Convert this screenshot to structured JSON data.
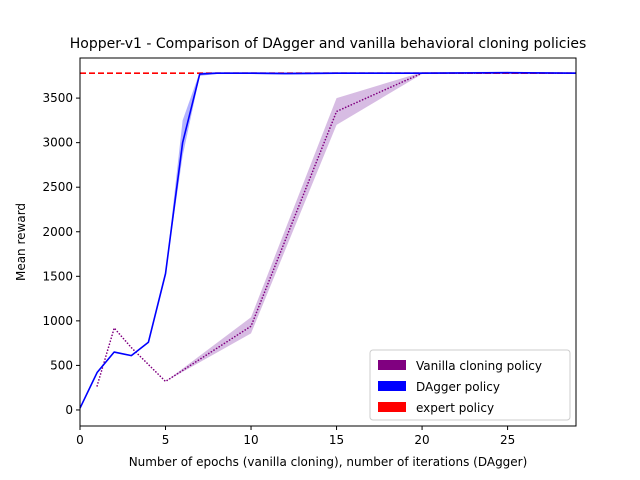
{
  "chart_data": {
    "type": "line",
    "title": "Hopper-v1 - Comparison of DAgger and vanilla behavioral cloning policies",
    "xlabel": "Number of epochs (vanilla cloning), number of iterations (DAgger)",
    "ylabel": "Mean reward",
    "xlim": [
      0,
      29
    ],
    "ylim": [
      -180,
      3950
    ],
    "xticks": [
      0,
      5,
      10,
      15,
      20,
      25
    ],
    "yticks": [
      0,
      500,
      1000,
      1500,
      2000,
      2500,
      3000,
      3500
    ],
    "legend_position": "lower-right",
    "series": [
      {
        "name": "Vanilla cloning policy",
        "color": "#800080",
        "style": "dotted",
        "x": [
          1,
          2,
          3,
          4,
          5,
          10,
          15,
          20,
          25,
          29
        ],
        "values": [
          270,
          920,
          700,
          510,
          320,
          940,
          3350,
          3780,
          3780,
          3780
        ],
        "band_upper": [
          270,
          920,
          700,
          510,
          320,
          1040,
          3500,
          3790,
          3790,
          3790
        ],
        "band_lower": [
          270,
          920,
          700,
          510,
          320,
          860,
          3200,
          3770,
          3770,
          3770
        ],
        "band_color": "#c9a6d9"
      },
      {
        "name": "DAgger policy",
        "color": "#0000ff",
        "style": "solid",
        "x": [
          0,
          1,
          2,
          3,
          4,
          5,
          6,
          7,
          8,
          10,
          12,
          15,
          20,
          25,
          29
        ],
        "values": [
          20,
          420,
          650,
          610,
          760,
          1530,
          3000,
          3770,
          3780,
          3780,
          3775,
          3780,
          3780,
          3785,
          3780
        ],
        "band_upper": [
          20,
          420,
          650,
          610,
          760,
          1530,
          3250,
          3790,
          3790,
          3790,
          3790,
          3790,
          3790,
          3795,
          3790
        ],
        "band_lower": [
          20,
          420,
          650,
          610,
          760,
          1530,
          2850,
          3750,
          3770,
          3770,
          3765,
          3770,
          3770,
          3775,
          3770
        ],
        "band_color": "#9999ff"
      },
      {
        "name": "expert policy",
        "color": "#ff0000",
        "style": "dashed",
        "x": [
          0,
          29
        ],
        "values": [
          3780,
          3780
        ]
      }
    ]
  }
}
